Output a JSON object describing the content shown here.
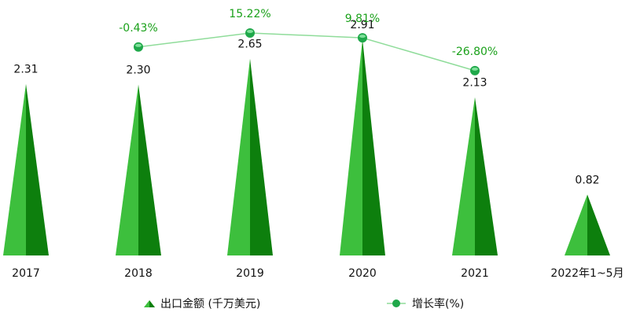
{
  "chart_data": {
    "type": "bar",
    "categories": [
      "2017",
      "2018",
      "2019",
      "2020",
      "2021",
      "2022年1~5月"
    ],
    "series": [
      {
        "name": "出口金额 (千万美元)",
        "type": "bar",
        "values": [
          2.31,
          2.3,
          2.65,
          2.91,
          2.13,
          0.82
        ]
      },
      {
        "name": "增长率(%)",
        "type": "line",
        "values": [
          null,
          -0.43,
          15.22,
          9.81,
          -26.8,
          null
        ],
        "labels": [
          "",
          "-0.43%",
          "15.22%",
          "9.81%",
          "-26.80%",
          ""
        ]
      }
    ],
    "title": "",
    "xlabel": "",
    "ylabel": "",
    "legend_position": "bottom",
    "grid": false
  },
  "colors": {
    "bar_light": "#3dbf3d",
    "bar_dark": "#0d7f0d",
    "line": "#8fdc9a",
    "marker": "#1fa84a",
    "rate_text": "#1aa11a"
  }
}
